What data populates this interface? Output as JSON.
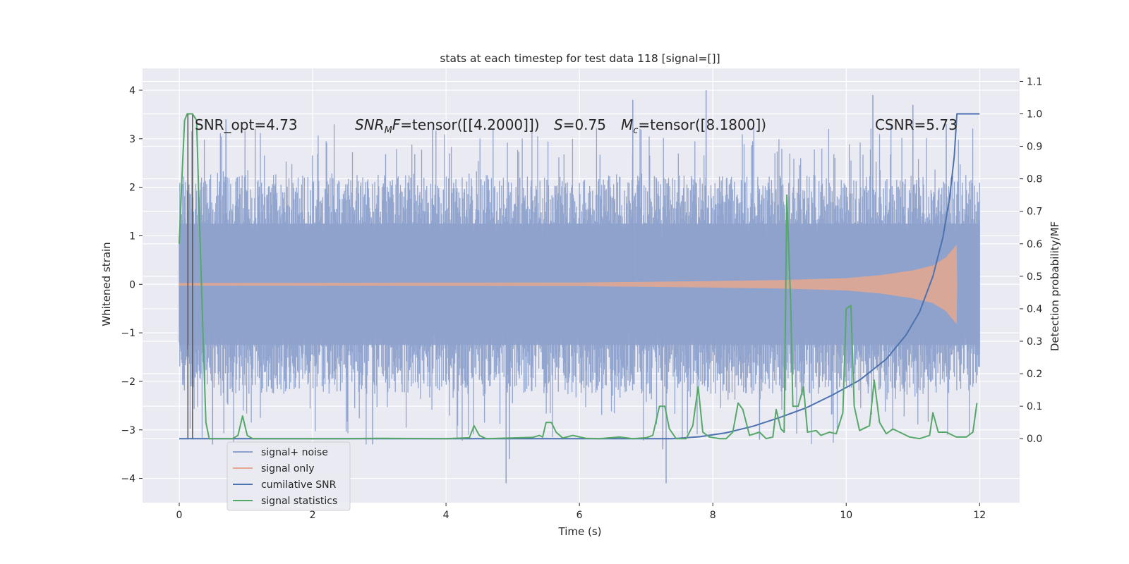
{
  "chart_data": {
    "type": "line",
    "title": "stats at each timestep for test data 118 [signal=[]]",
    "xlabel": "Time (s)",
    "ylabel_left": "Whitened strain",
    "ylabel_right": "Detection probability/MF",
    "xlim": [
      -0.55,
      12.6
    ],
    "ylim_left": [
      -4.5,
      4.45
    ],
    "ylim_right": [
      -0.197,
      1.14
    ],
    "x_ticks": [
      "0",
      "2",
      "4",
      "6",
      "8",
      "10",
      "12"
    ],
    "y_ticks_left": [
      "4",
      "3",
      "2",
      "1",
      "0",
      "−1",
      "−2",
      "−3",
      "−4"
    ],
    "y_ticks_right": [
      "0.0",
      "0.1",
      "0.2",
      "0.3",
      "0.4",
      "0.5",
      "0.6",
      "0.7",
      "0.8",
      "0.9",
      "1.0",
      "1.1"
    ],
    "grid": true,
    "legend_position": "lower-left",
    "annotations": {
      "snr_opt": "SNR_opt=4.73",
      "snr_mf_italic": "SNR",
      "snr_mf_sub": "M",
      "snr_mf_italic2": "F",
      "snr_mf_rest": "=tensor([[4.2000]])",
      "s_italic": "S",
      "s_rest": "=0.75",
      "mc_italic": "M",
      "mc_sub": "c",
      "mc_rest": "=tensor([8.1800])",
      "csnr": "CSNR=5.73"
    },
    "series": [
      {
        "name": "signal+ noise",
        "axis": "left",
        "color": "#8da1cb",
        "band": {
          "x": [
            0.0,
            12.0
          ],
          "core": [
            -1.25,
            1.25
          ],
          "spike_hi": [
            1.8,
            3.3
          ],
          "spike_lo": [
            -1.8,
            -3.3
          ]
        },
        "outliers": [
          [
            0.7,
            3.4
          ],
          [
            3.8,
            3.2
          ],
          [
            6.8,
            3.8
          ],
          [
            7.9,
            4.0
          ],
          [
            10.4,
            3.9
          ],
          [
            11.0,
            3.7
          ],
          [
            11.5,
            3.3
          ],
          [
            2.9,
            -3.3
          ],
          [
            4.9,
            -4.1
          ],
          [
            4.95,
            -3.6
          ],
          [
            7.3,
            -4.1
          ],
          [
            7.25,
            -3.4
          ],
          [
            8.7,
            -3.2
          ],
          [
            0.5,
            -3.3
          ]
        ]
      },
      {
        "name": "signal only",
        "axis": "left",
        "color": "#e5a88f",
        "envelope": [
          [
            0.0,
            0.02
          ],
          [
            6.0,
            0.03
          ],
          [
            8.0,
            0.06
          ],
          [
            9.0,
            0.08
          ],
          [
            10.0,
            0.12
          ],
          [
            10.5,
            0.18
          ],
          [
            11.0,
            0.28
          ],
          [
            11.3,
            0.38
          ],
          [
            11.5,
            0.55
          ],
          [
            11.62,
            0.75
          ],
          [
            11.65,
            0.8
          ],
          [
            11.66,
            0.0
          ]
        ]
      },
      {
        "name": "cumilative SNR",
        "axis": "right",
        "color": "#4c72b0",
        "points": [
          [
            0.0,
            0.0
          ],
          [
            7.4,
            0.0
          ],
          [
            7.8,
            0.006
          ],
          [
            8.2,
            0.018
          ],
          [
            8.6,
            0.038
          ],
          [
            9.0,
            0.065
          ],
          [
            9.4,
            0.095
          ],
          [
            9.8,
            0.135
          ],
          [
            10.2,
            0.18
          ],
          [
            10.6,
            0.245
          ],
          [
            10.9,
            0.32
          ],
          [
            11.1,
            0.39
          ],
          [
            11.3,
            0.5
          ],
          [
            11.45,
            0.62
          ],
          [
            11.55,
            0.74
          ],
          [
            11.62,
            0.87
          ],
          [
            11.66,
            1.0
          ],
          [
            12.0,
            1.0
          ]
        ]
      },
      {
        "name": "signal statistics",
        "axis": "right",
        "color": "#55a868",
        "points": [
          [
            0.0,
            0.6
          ],
          [
            0.04,
            0.8
          ],
          [
            0.08,
            0.98
          ],
          [
            0.12,
            1.0
          ],
          [
            0.2,
            1.0
          ],
          [
            0.26,
            0.98
          ],
          [
            0.3,
            0.7
          ],
          [
            0.36,
            0.3
          ],
          [
            0.4,
            0.05
          ],
          [
            0.45,
            0.0
          ],
          [
            0.8,
            0.0
          ],
          [
            0.88,
            0.01
          ],
          [
            0.95,
            0.07
          ],
          [
            1.02,
            0.01
          ],
          [
            1.1,
            0.0
          ],
          [
            2.5,
            0.0
          ],
          [
            3.0,
            0.001
          ],
          [
            4.0,
            0.0
          ],
          [
            4.35,
            0.003
          ],
          [
            4.42,
            0.04
          ],
          [
            4.5,
            0.01
          ],
          [
            4.6,
            0.0
          ],
          [
            5.3,
            0.004
          ],
          [
            5.4,
            0.01
          ],
          [
            5.45,
            0.005
          ],
          [
            5.5,
            0.05
          ],
          [
            5.58,
            0.05
          ],
          [
            5.65,
            0.02
          ],
          [
            5.75,
            0.002
          ],
          [
            5.9,
            0.01
          ],
          [
            6.1,
            0.001
          ],
          [
            6.3,
            0.0
          ],
          [
            6.6,
            0.005
          ],
          [
            6.8,
            0.0
          ],
          [
            7.0,
            0.003
          ],
          [
            7.1,
            0.01
          ],
          [
            7.2,
            0.1
          ],
          [
            7.28,
            0.1
          ],
          [
            7.35,
            0.03
          ],
          [
            7.45,
            0.0
          ],
          [
            7.6,
            0.0
          ],
          [
            7.7,
            0.04
          ],
          [
            7.78,
            0.16
          ],
          [
            7.85,
            0.02
          ],
          [
            7.95,
            0.005
          ],
          [
            8.1,
            0.0
          ],
          [
            8.2,
            0.0
          ],
          [
            8.3,
            0.02
          ],
          [
            8.38,
            0.11
          ],
          [
            8.45,
            0.09
          ],
          [
            8.55,
            0.01
          ],
          [
            8.7,
            0.02
          ],
          [
            8.8,
            0.0
          ],
          [
            8.9,
            0.005
          ],
          [
            8.95,
            0.09
          ],
          [
            9.02,
            0.03
          ],
          [
            9.07,
            0.02
          ],
          [
            9.11,
            0.75
          ],
          [
            9.17,
            0.4
          ],
          [
            9.2,
            0.1
          ],
          [
            9.28,
            0.1
          ],
          [
            9.36,
            0.16
          ],
          [
            9.42,
            0.02
          ],
          [
            9.55,
            0.025
          ],
          [
            9.62,
            0.01
          ],
          [
            9.75,
            0.02
          ],
          [
            9.85,
            0.015
          ],
          [
            9.95,
            0.08
          ],
          [
            10.0,
            0.4
          ],
          [
            10.07,
            0.41
          ],
          [
            10.12,
            0.1
          ],
          [
            10.2,
            0.025
          ],
          [
            10.35,
            0.04
          ],
          [
            10.42,
            0.18
          ],
          [
            10.5,
            0.05
          ],
          [
            10.6,
            0.015
          ],
          [
            10.7,
            0.03
          ],
          [
            10.8,
            0.02
          ],
          [
            10.95,
            0.005
          ],
          [
            11.1,
            0.0
          ],
          [
            11.25,
            0.01
          ],
          [
            11.3,
            0.08
          ],
          [
            11.38,
            0.02
          ],
          [
            11.5,
            0.02
          ],
          [
            11.65,
            0.005
          ],
          [
            11.8,
            0.005
          ],
          [
            11.9,
            0.02
          ],
          [
            11.96,
            0.11
          ]
        ]
      }
    ],
    "extra_lines": {
      "color": "#555555",
      "segments": [
        [
          0.13,
          1.0,
          0.13,
          0.0
        ],
        [
          0.2,
          1.0,
          0.2,
          0.0
        ]
      ]
    }
  }
}
